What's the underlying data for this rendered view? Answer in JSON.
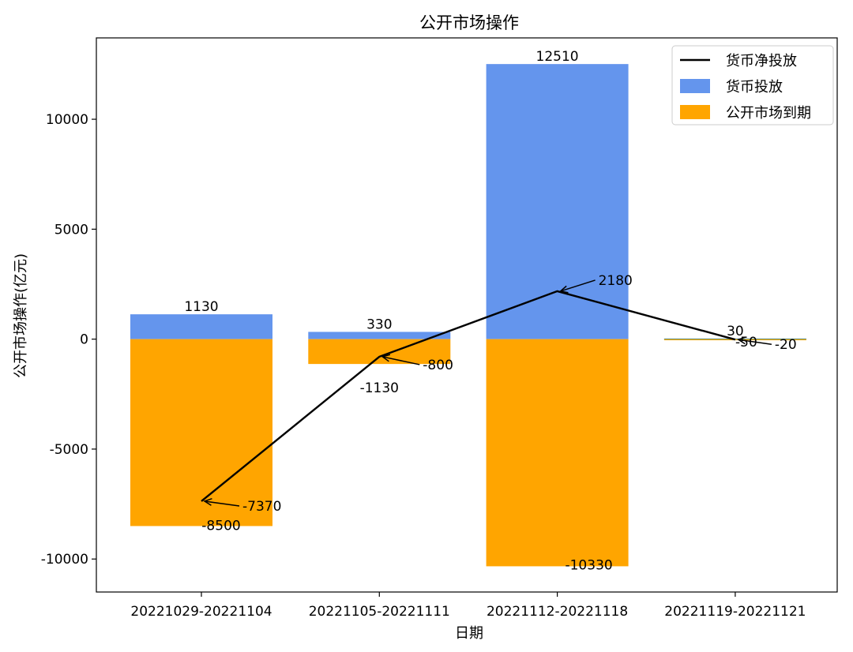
{
  "chart_data": {
    "type": "bar",
    "title": "公开市场操作",
    "xlabel": "日期",
    "ylabel": "公开市场操作(亿元)",
    "categories": [
      "20221029-20221104",
      "20221105-20221111",
      "20221112-20221118",
      "20221119-20221121"
    ],
    "ylim": [
      -11500,
      13700
    ],
    "yticks": [
      -10000,
      -5000,
      0,
      5000,
      10000
    ],
    "ytick_labels": [
      "-10000",
      "-5000",
      "0",
      "5000",
      "10000"
    ],
    "series": [
      {
        "name": "货币投放",
        "kind": "bar",
        "color": "#6495ED",
        "values": [
          1130,
          330,
          12510,
          30
        ],
        "labels": [
          "1130",
          "330",
          "12510",
          "30"
        ]
      },
      {
        "name": "公开市场到期",
        "kind": "bar",
        "color": "#FFA500",
        "values": [
          -8500,
          -1130,
          -10330,
          -50
        ],
        "labels": [
          "-8500",
          "-1130",
          "-10330",
          "-50"
        ]
      },
      {
        "name": "货币净投放",
        "kind": "line",
        "color": "#000000",
        "values": [
          -7370,
          -800,
          2180,
          -20
        ],
        "labels": [
          "-7370",
          "-800",
          "2180",
          "-20"
        ]
      }
    ],
    "legend_position": "top-right",
    "grid": false
  }
}
